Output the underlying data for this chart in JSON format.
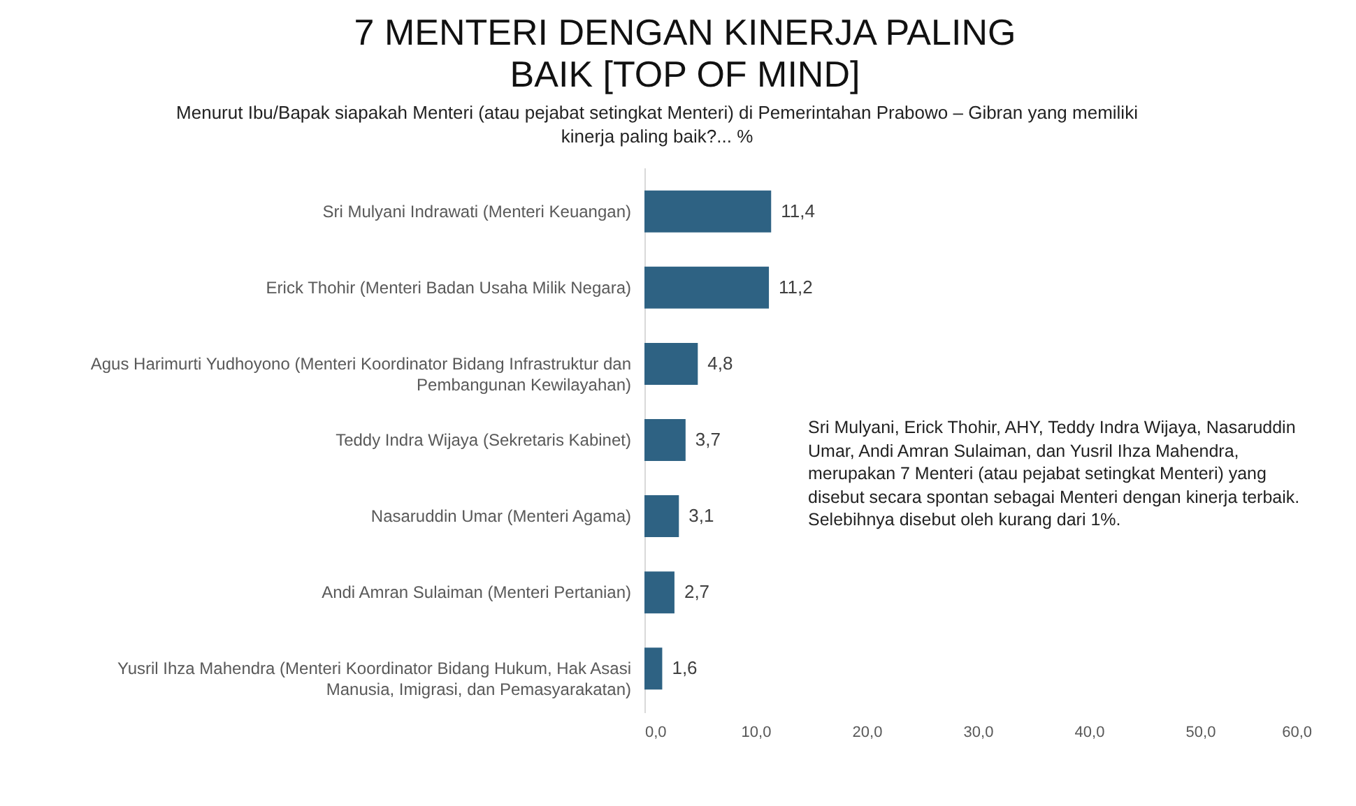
{
  "chart_data": {
    "type": "bar",
    "orientation": "horizontal",
    "title": "7 MENTERI DENGAN KINERJA PALING BAIK [TOP OF MIND]",
    "subtitle": "Menurut Ibu/Bapak siapakah Menteri (atau pejabat setingkat Menteri) di Pemerintahan Prabowo – Gibran yang memiliki kinerja paling baik?... %",
    "categories": [
      "Sri Mulyani Indrawati (Menteri Keuangan)",
      "Erick Thohir (Menteri Badan Usaha Milik Negara)",
      "Agus Harimurti Yudhoyono (Menteri Koordinator Bidang Infrastruktur dan Pembangunan Kewilayahan)",
      "Teddy Indra Wijaya (Sekretaris Kabinet)",
      "Nasaruddin Umar (Menteri Agama)",
      "Andi Amran Sulaiman (Menteri Pertanian)",
      "Yusril Ihza Mahendra (Menteri Koordinator Bidang Hukum, Hak Asasi Manusia, Imigrasi, dan Pemasyarakatan)"
    ],
    "values": [
      11.4,
      11.2,
      4.8,
      3.7,
      3.1,
      2.7,
      1.6
    ],
    "value_labels": [
      "11,4",
      "11,2",
      "4,8",
      "3,7",
      "3,1",
      "2,7",
      "1,6"
    ],
    "color": "#2e6283",
    "xlim": [
      0,
      60
    ],
    "xticks": [
      {
        "value": 0,
        "label": "0,0"
      },
      {
        "value": 10,
        "label": "10,0"
      },
      {
        "value": 20,
        "label": "20,0"
      },
      {
        "value": 30,
        "label": "30,0"
      },
      {
        "value": 40,
        "label": "40,0"
      },
      {
        "value": 50,
        "label": "50,0"
      },
      {
        "value": 60,
        "label": "60,0"
      }
    ],
    "annotations": [
      "Sri Mulyani, Erick Thohir, AHY, Teddy Indra Wijaya, Nasaruddin Umar, Andi Amran Sulaiman, dan Yusril Ihza Mahendra, merupakan 7 Menteri (atau pejabat setingkat Menteri) yang disebut secara spontan sebagai Menteri dengan kinerja terbaik. Selebihnya disebut oleh kurang dari 1%."
    ]
  }
}
